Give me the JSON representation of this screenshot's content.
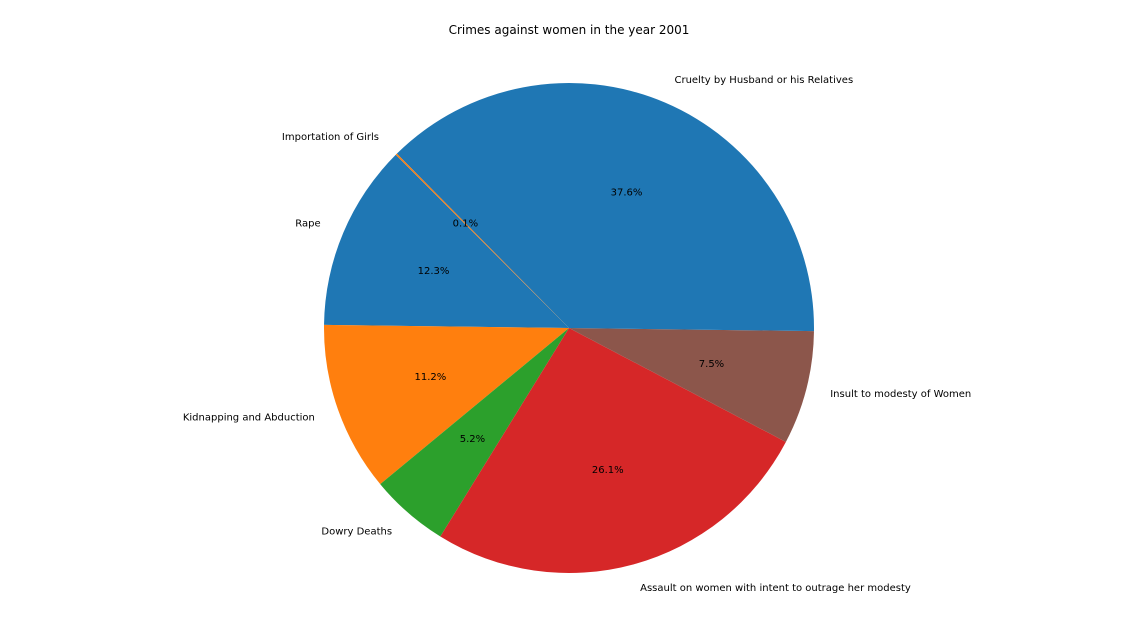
{
  "chart_data": {
    "type": "pie",
    "title": "Crimes against women in the year 2001",
    "categories": [
      "Rape",
      "Kidnapping and Abduction",
      "Dowry Deaths",
      "Assault on women with intent to outrage her modesty",
      "Insult to modesty of Women",
      "Cruelty by Husband or his Relatives",
      "Importation of Girls"
    ],
    "values": [
      12.3,
      11.2,
      5.2,
      26.1,
      7.5,
      37.6,
      0.1
    ],
    "value_labels": [
      "12.3%",
      "11.2%",
      "5.2%",
      "26.1%",
      "7.5%",
      "37.6%",
      "0.1%"
    ],
    "colors": [
      "#1f77b4",
      "#ff7f0e",
      "#2ca02c",
      "#d62728",
      "#8c564b",
      "#1f77b4",
      "#ff7f0e"
    ],
    "start_angle_deg": 135,
    "direction": "counterclockwise"
  }
}
